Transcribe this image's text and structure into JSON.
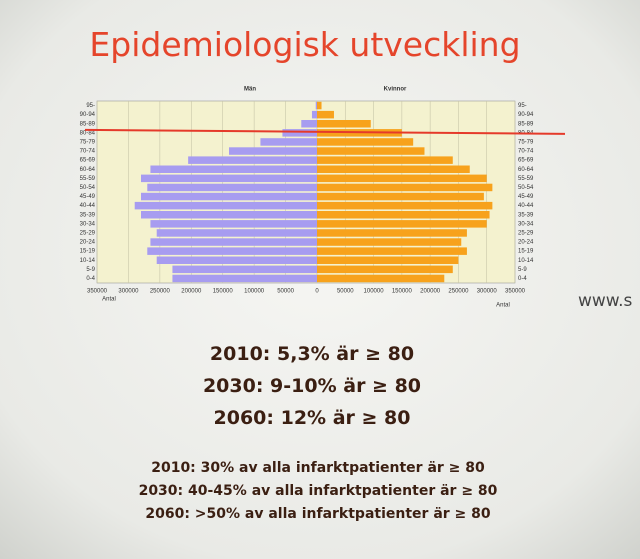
{
  "title": "Epidemiologisk utveckling",
  "chart_data": {
    "type": "pyramid",
    "categories": [
      "0-4",
      "5-9",
      "10-14",
      "15-19",
      "20-24",
      "25-29",
      "30-34",
      "35-39",
      "40-44",
      "45-49",
      "50-54",
      "55-59",
      "60-64",
      "65-69",
      "70-74",
      "75-79",
      "80-84",
      "85-89",
      "90-94",
      "95-"
    ],
    "series": [
      {
        "name": "Män",
        "color": "#a79cf0",
        "direction": "left",
        "values": [
          230000,
          230000,
          255000,
          270000,
          265000,
          255000,
          265000,
          280000,
          290000,
          280000,
          270000,
          280000,
          265000,
          205000,
          140000,
          90000,
          55000,
          25000,
          8000,
          2000
        ]
      },
      {
        "name": "Kvinnor",
        "color": "#f7a21c",
        "direction": "right",
        "values": [
          225000,
          240000,
          250000,
          265000,
          255000,
          265000,
          300000,
          305000,
          310000,
          295000,
          310000,
          300000,
          270000,
          240000,
          190000,
          170000,
          150000,
          95000,
          30000,
          8000
        ]
      }
    ],
    "x_label": "Antal",
    "xlim": [
      -350000,
      350000
    ],
    "xticks": [
      {
        "value": -350000,
        "label": "350000"
      },
      {
        "value": -300000,
        "label": "300000"
      },
      {
        "value": -250000,
        "label": "250000"
      },
      {
        "value": -200000,
        "label": "200000"
      },
      {
        "value": -150000,
        "label": "150000"
      },
      {
        "value": -100000,
        "label": "100000"
      },
      {
        "value": -50000,
        "label": "50000"
      },
      0,
      50000,
      100000,
      150000,
      200000,
      250000,
      300000,
      350000
    ],
    "grid": true
  },
  "stats": [
    "2010: 5,3% är ≥ 80",
    "2030: 9-10% är ≥ 80",
    "2060: 12% är ≥ 80"
  ],
  "facts": [
    "2010: 30% av alla infarktpatienter är ≥ 80",
    "2030: 40-45% av alla infarktpatienter är ≥ 80",
    "2060: >50% av alla infarktpatienter är ≥ 80"
  ],
  "url": "www.s"
}
